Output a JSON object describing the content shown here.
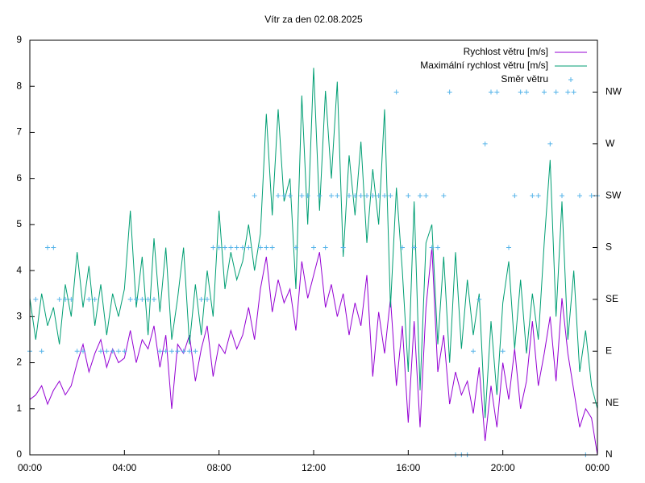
{
  "chart_data": {
    "type": "line",
    "title": "Vítr za den 02.08.2025",
    "xlim": [
      0,
      1440
    ],
    "xticks": [
      {
        "value": 0,
        "label": "00:00"
      },
      {
        "value": 240,
        "label": "04:00"
      },
      {
        "value": 480,
        "label": "08:00"
      },
      {
        "value": 720,
        "label": "12:00"
      },
      {
        "value": 960,
        "label": "16:00"
      },
      {
        "value": 1200,
        "label": "20:00"
      },
      {
        "value": 1440,
        "label": "00:00"
      }
    ],
    "ylim": [
      0,
      9
    ],
    "yticks": [
      0,
      1,
      2,
      3,
      4,
      5,
      6,
      7,
      8,
      9
    ],
    "y2lim": [
      0,
      360
    ],
    "y2ticks": [
      {
        "value": 0,
        "label": "N"
      },
      {
        "value": 45,
        "label": "NE"
      },
      {
        "value": 90,
        "label": "E"
      },
      {
        "value": 135,
        "label": "SE"
      },
      {
        "value": 180,
        "label": "S"
      },
      {
        "value": 225,
        "label": "SW"
      },
      {
        "value": 270,
        "label": "W"
      },
      {
        "value": 315,
        "label": "NW"
      }
    ],
    "legend": "top right",
    "x": [
      0,
      15,
      30,
      45,
      60,
      75,
      90,
      105,
      120,
      135,
      150,
      165,
      180,
      195,
      210,
      225,
      240,
      255,
      270,
      285,
      300,
      315,
      330,
      345,
      360,
      375,
      390,
      405,
      420,
      435,
      450,
      465,
      480,
      495,
      510,
      525,
      540,
      555,
      570,
      585,
      600,
      615,
      630,
      645,
      660,
      675,
      690,
      705,
      720,
      735,
      750,
      765,
      780,
      795,
      810,
      825,
      840,
      855,
      870,
      885,
      900,
      915,
      930,
      945,
      960,
      975,
      990,
      1005,
      1020,
      1035,
      1050,
      1065,
      1080,
      1095,
      1110,
      1125,
      1140,
      1155,
      1170,
      1185,
      1200,
      1215,
      1230,
      1245,
      1260,
      1275,
      1290,
      1305,
      1320,
      1335,
      1350,
      1365,
      1380,
      1395,
      1410,
      1425,
      1440
    ],
    "series": [
      {
        "name": "Rychlost větru [m/s]",
        "color": "#9400d3",
        "type": "line",
        "values": [
          1.2,
          1.3,
          1.5,
          1.1,
          1.4,
          1.6,
          1.3,
          1.5,
          2.0,
          2.4,
          1.8,
          2.2,
          2.5,
          1.9,
          2.3,
          2.0,
          2.1,
          2.7,
          2.0,
          2.5,
          2.3,
          2.8,
          1.9,
          2.6,
          1.0,
          2.4,
          2.2,
          2.6,
          1.6,
          2.3,
          2.8,
          1.7,
          2.4,
          2.2,
          2.7,
          2.3,
          2.6,
          3.2,
          2.5,
          3.6,
          4.3,
          3.1,
          3.8,
          3.3,
          3.6,
          2.7,
          4.2,
          3.4,
          3.9,
          4.4,
          3.2,
          3.7,
          3.0,
          3.5,
          2.6,
          3.3,
          2.8,
          3.9,
          1.7,
          3.1,
          2.2,
          3.4,
          1.5,
          2.8,
          0.7,
          2.9,
          0.6,
          3.2,
          4.5,
          1.8,
          2.6,
          1.1,
          1.8,
          1.3,
          1.6,
          0.9,
          1.9,
          0.3,
          1.5,
          0.6,
          2.0,
          1.2,
          2.3,
          1.0,
          1.6,
          2.9,
          1.5,
          2.2,
          3.0,
          1.6,
          3.4,
          2.2,
          1.4,
          0.6,
          1.0,
          0.8,
          0.0
        ]
      },
      {
        "name": "Maximální rychlost větru [m/s]",
        "color": "#009e73",
        "type": "line",
        "values": [
          3.4,
          2.5,
          3.5,
          2.8,
          3.2,
          2.4,
          3.7,
          3.0,
          4.4,
          3.2,
          4.1,
          2.8,
          3.7,
          2.6,
          3.5,
          3.0,
          3.6,
          5.3,
          3.2,
          4.3,
          2.6,
          4.7,
          3.1,
          4.5,
          2.5,
          3.4,
          4.5,
          2.4,
          3.7,
          2.6,
          4.0,
          3.0,
          5.3,
          3.6,
          4.4,
          3.8,
          4.2,
          5.0,
          4.0,
          4.8,
          7.4,
          5.2,
          7.5,
          5.5,
          6.0,
          3.6,
          7.8,
          5.0,
          8.4,
          5.3,
          7.9,
          6.0,
          8.1,
          4.3,
          6.5,
          5.2,
          6.8,
          4.6,
          6.2,
          5.0,
          7.5,
          3.2,
          5.8,
          4.0,
          1.8,
          5.5,
          1.4,
          4.6,
          5.0,
          2.4,
          4.3,
          2.0,
          4.4,
          2.3,
          3.8,
          2.6,
          3.5,
          0.8,
          2.9,
          1.3,
          3.3,
          4.2,
          2.3,
          3.8,
          2.2,
          3.5,
          2.5,
          4.6,
          6.4,
          3.0,
          5.5,
          2.5,
          4.0,
          1.8,
          2.7,
          1.5,
          1.0
        ]
      },
      {
        "name": "Směr větru",
        "color": "#56b4e9",
        "type": "scatter",
        "axis": "y2",
        "values": [
          90,
          135,
          90,
          180,
          180,
          135,
          135,
          135,
          90,
          90,
          135,
          135,
          90,
          90,
          90,
          90,
          90,
          135,
          135,
          135,
          135,
          135,
          90,
          90,
          90,
          90,
          90,
          90,
          90,
          135,
          135,
          180,
          180,
          180,
          180,
          180,
          180,
          180,
          225,
          180,
          180,
          180,
          225,
          225,
          225,
          180,
          225,
          225,
          180,
          225,
          180,
          225,
          225,
          180,
          225,
          225,
          225,
          225,
          225,
          225,
          225,
          225,
          315,
          180,
          225,
          180,
          225,
          225,
          180,
          180,
          225,
          315,
          0,
          0,
          0,
          90,
          135,
          270,
          315,
          315,
          90,
          180,
          225,
          315,
          315,
          225,
          225,
          315,
          270,
          315,
          225,
          315,
          315,
          225,
          0,
          225,
          225
        ]
      }
    ]
  }
}
